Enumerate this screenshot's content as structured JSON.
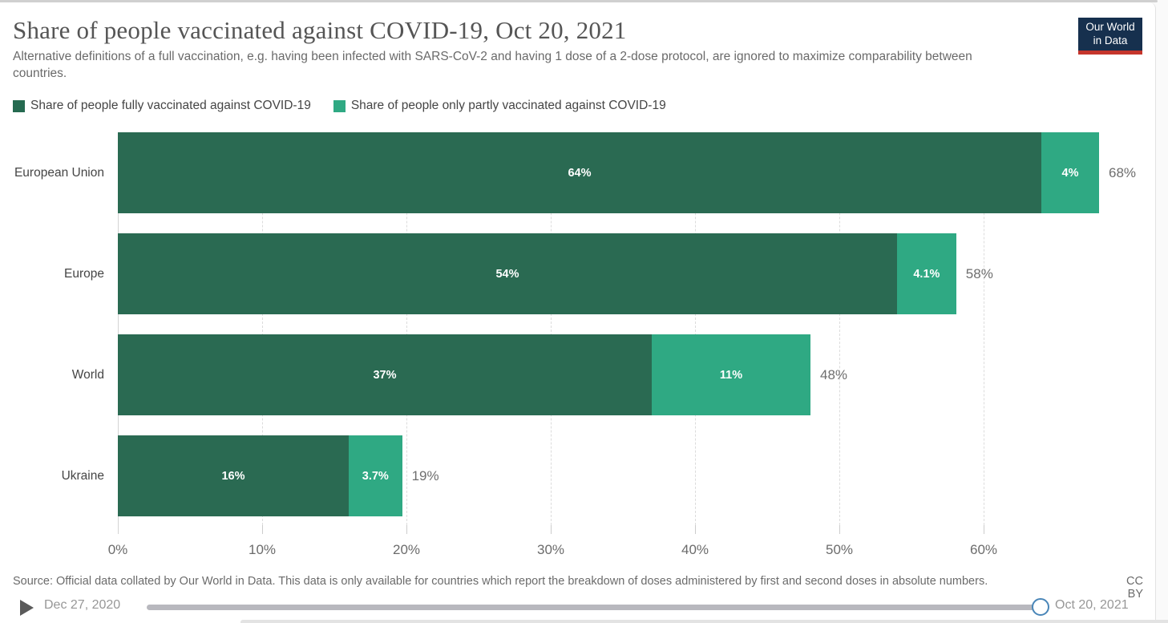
{
  "header": {
    "title": "Share of people vaccinated against COVID-19, Oct 20, 2021",
    "subtitle": "Alternative definitions of a full vaccination, e.g. having been infected with SARS-CoV-2 and having 1 dose of a 2-dose protocol, are ignored to maximize comparability between countries.",
    "logo": {
      "line1": "Our World",
      "line2": "in Data",
      "bg": "#16304e",
      "accent": "#c5352c"
    }
  },
  "legend": [
    {
      "label": "Share of people fully vaccinated against COVID-19",
      "color": "#256a50"
    },
    {
      "label": "Share of people only partly vaccinated against COVID-19",
      "color": "#2fa983"
    }
  ],
  "chart_data": {
    "type": "bar",
    "orientation": "horizontal",
    "stacked": true,
    "title": "Share of people vaccinated against COVID-19, Oct 20, 2021",
    "categories": [
      "European Union",
      "Europe",
      "World",
      "Ukraine"
    ],
    "series": [
      {
        "name": "Share of people fully vaccinated against COVID-19",
        "color": "#2a6a52",
        "values": [
          64,
          54,
          37,
          16
        ],
        "value_labels": [
          "64%",
          "54%",
          "37%",
          "16%"
        ]
      },
      {
        "name": "Share of people only partly vaccinated against COVID-19",
        "color": "#2fa983",
        "values": [
          4,
          4.1,
          11,
          3.7
        ],
        "value_labels": [
          "4%",
          "4.1%",
          "11%",
          "3.7%"
        ]
      }
    ],
    "totals": [
      68,
      58,
      48,
      19
    ],
    "total_labels": [
      "68%",
      "58%",
      "48%",
      "19%"
    ],
    "x_tick_values": [
      0,
      10,
      20,
      30,
      40,
      50,
      60
    ],
    "x_tick_labels": [
      "0%",
      "10%",
      "20%",
      "30%",
      "40%",
      "50%",
      "60%"
    ],
    "xlim": [
      0,
      70
    ],
    "grid": "dashed-vertical",
    "legend_position": "top-left",
    "value_label_color": "#ffffff"
  },
  "footer": {
    "source": "Source: Official data collated by Our World in Data. This data is only available for countries which report the breakdown of doses administered by first and second doses in absolute numbers.",
    "license": "CC BY"
  },
  "timeline": {
    "start_date": "Dec 27, 2020",
    "end_date": "Oct 20, 2021"
  }
}
